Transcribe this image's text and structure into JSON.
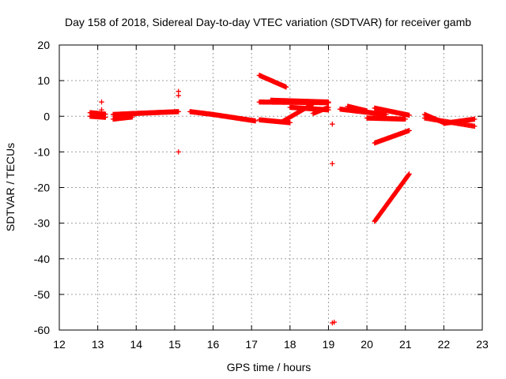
{
  "chart_data": {
    "type": "scatter",
    "title": "Day 158 of 2018, Sidereal Day-to-day VTEC variation (SDTVAR) for receiver gamb",
    "xlabel": "GPS time / hours",
    "ylabel": "SDTVAR / TECUs",
    "xlim": [
      12,
      23
    ],
    "ylim": [
      -60,
      20
    ],
    "xticks": [
      "12",
      "13",
      "14",
      "15",
      "16",
      "17",
      "18",
      "19",
      "20",
      "21",
      "22",
      "23"
    ],
    "yticks": [
      "20",
      "10",
      "0",
      "-10",
      "-20",
      "-30",
      "-40",
      "-50",
      "-60"
    ],
    "grid": true,
    "marker": "+",
    "color": "#ff0000",
    "segments": [
      {
        "x": [
          12.8,
          13.2
        ],
        "y": [
          1.0,
          0.6
        ],
        "n": 30
      },
      {
        "x": [
          12.8,
          13.2
        ],
        "y": [
          0.0,
          -0.3
        ],
        "n": 20
      },
      {
        "x": [
          13.4,
          14.0
        ],
        "y": [
          0.5,
          0.8
        ],
        "n": 40
      },
      {
        "x": [
          13.4,
          13.9
        ],
        "y": [
          -0.8,
          -0.2
        ],
        "n": 25
      },
      {
        "x": [
          14.0,
          15.1
        ],
        "y": [
          0.8,
          1.3
        ],
        "n": 60
      },
      {
        "x": [
          15.4,
          16.0
        ],
        "y": [
          1.3,
          0.5
        ],
        "n": 35
      },
      {
        "x": [
          16.0,
          17.1
        ],
        "y": [
          0.5,
          -1.3
        ],
        "n": 60
      },
      {
        "x": [
          17.2,
          17.9
        ],
        "y": [
          11.5,
          8.2
        ],
        "n": 40
      },
      {
        "x": [
          17.2,
          19.0
        ],
        "y": [
          4.0,
          3.8
        ],
        "n": 80
      },
      {
        "x": [
          17.2,
          18.0
        ],
        "y": [
          -1.0,
          -1.8
        ],
        "n": 40
      },
      {
        "x": [
          17.5,
          19.0
        ],
        "y": [
          4.5,
          4.0
        ],
        "n": 70
      },
      {
        "x": [
          17.8,
          18.6
        ],
        "y": [
          -1.5,
          3.5
        ],
        "n": 40
      },
      {
        "x": [
          18.0,
          19.0
        ],
        "y": [
          2.5,
          1.8
        ],
        "n": 50
      },
      {
        "x": [
          18.6,
          19.0
        ],
        "y": [
          0.8,
          2.5
        ],
        "n": 20
      },
      {
        "x": [
          19.3,
          20.5
        ],
        "y": [
          2.0,
          0.5
        ],
        "n": 60
      },
      {
        "x": [
          19.5,
          20.0
        ],
        "y": [
          2.8,
          1.5
        ],
        "n": 30
      },
      {
        "x": [
          20.0,
          21.0
        ],
        "y": [
          -0.5,
          -0.8
        ],
        "n": 50
      },
      {
        "x": [
          20.2,
          21.1
        ],
        "y": [
          2.3,
          0.3
        ],
        "n": 45
      },
      {
        "x": [
          20.2,
          21.1
        ],
        "y": [
          -7.5,
          -4.0
        ],
        "n": 45
      },
      {
        "x": [
          20.2,
          21.1
        ],
        "y": [
          -29.5,
          -16.2
        ],
        "n": 80
      },
      {
        "x": [
          21.5,
          22.0
        ],
        "y": [
          0.5,
          -1.8
        ],
        "n": 30
      },
      {
        "x": [
          22.0,
          22.8
        ],
        "y": [
          -2.0,
          -0.8
        ],
        "n": 40
      },
      {
        "x": [
          21.5,
          22.8
        ],
        "y": [
          -0.5,
          -2.8
        ],
        "n": 50
      }
    ],
    "points": [
      {
        "x": 13.1,
        "y": 4.0
      },
      {
        "x": 13.1,
        "y": 1.8
      },
      {
        "x": 15.1,
        "y": 7.0
      },
      {
        "x": 15.1,
        "y": 5.8
      },
      {
        "x": 15.1,
        "y": -10.0
      },
      {
        "x": 19.1,
        "y": -2.2
      },
      {
        "x": 19.1,
        "y": -13.3
      },
      {
        "x": 19.1,
        "y": -58.0
      },
      {
        "x": 19.15,
        "y": -57.8
      }
    ]
  }
}
